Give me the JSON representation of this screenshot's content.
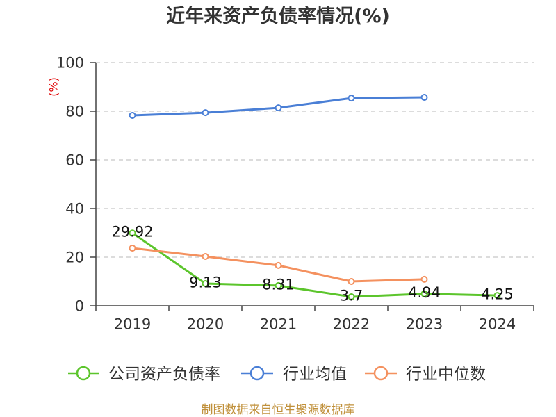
{
  "chart_data": {
    "type": "line",
    "title": "近年来资产负债率情况(%)",
    "xlabel": "",
    "ylabel": "(%)",
    "categories": [
      "2019",
      "2020",
      "2021",
      "2022",
      "2023",
      "2024"
    ],
    "ylim": [
      0,
      100
    ],
    "yticks": [
      0,
      20,
      40,
      60,
      80,
      100
    ],
    "grid": true,
    "legend_position": "bottom",
    "series": [
      {
        "name": "公司资产负债率",
        "color": "#5cc52c",
        "values": [
          29.92,
          9.13,
          8.31,
          3.7,
          4.94,
          4.25
        ],
        "show_labels": true
      },
      {
        "name": "行业均值",
        "color": "#4a7fd6",
        "values": [
          78.3,
          79.4,
          81.4,
          85.4,
          85.7,
          null
        ],
        "show_labels": false
      },
      {
        "name": "行业中位数",
        "color": "#f4915f",
        "values": [
          23.7,
          20.3,
          16.6,
          10.0,
          10.9,
          null
        ],
        "show_labels": false
      }
    ]
  },
  "footer": "制图数据来自恒生聚源数据库"
}
